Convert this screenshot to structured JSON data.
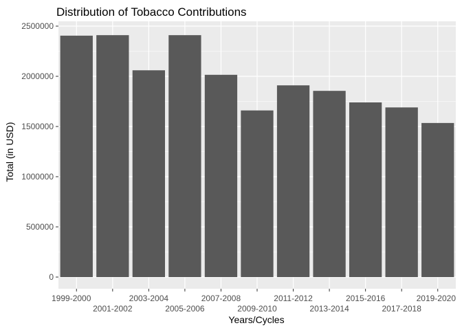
{
  "chart_data": {
    "type": "bar",
    "title": "Distribution of Tobacco Contributions",
    "xlabel": "Years/Cycles",
    "ylabel": "Total (in USD)",
    "categories": [
      "1999-2000",
      "2001-2002",
      "2003-2004",
      "2005-2006",
      "2007-2008",
      "2009-2010",
      "2011-2012",
      "2013-2014",
      "2015-2016",
      "2017-2018",
      "2019-2020"
    ],
    "values": [
      2405000,
      2410000,
      2060000,
      2410000,
      2015000,
      1660000,
      1910000,
      1855000,
      1740000,
      1690000,
      1535000
    ],
    "y_ticks": [
      "0",
      "500000",
      "1000000",
      "1500000",
      "2000000",
      "2500000"
    ],
    "ylim": [
      0,
      2500000
    ],
    "grid": true,
    "colors": {
      "bar": "#595959",
      "panel": "#ebebeb",
      "grid": "#ffffff"
    }
  }
}
